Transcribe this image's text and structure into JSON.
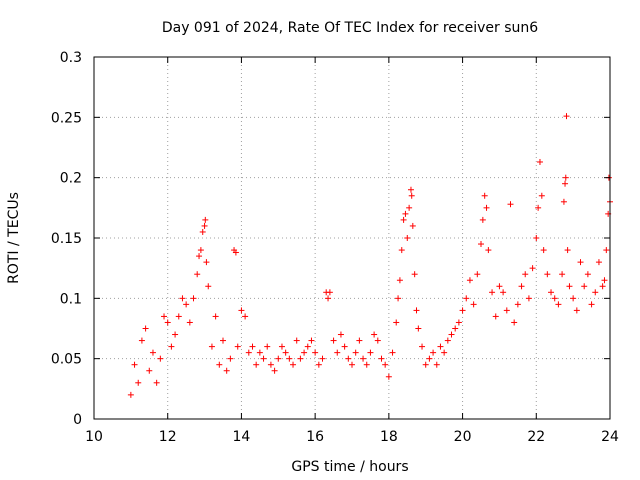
{
  "chart_data": {
    "type": "scatter",
    "title": "Day 091 of 2024, Rate Of TEC Index for receiver sun6",
    "xlabel": "GPS time / hours",
    "ylabel": "ROTI / TECUs",
    "xlim": [
      10,
      24
    ],
    "ylim": [
      0,
      0.3
    ],
    "grid": true,
    "marker": "+",
    "colors": {
      "points": "#ff0000",
      "grid": "#a0a0a0",
      "axes": "#000000"
    },
    "xticks": [
      10,
      12,
      14,
      16,
      18,
      20,
      22,
      24
    ],
    "yticks": [
      0,
      0.05,
      0.1,
      0.15,
      0.2,
      0.25,
      0.3
    ],
    "xtick_labels": [
      "10",
      "12",
      "14",
      "16",
      "18",
      "20",
      "22",
      "24"
    ],
    "ytick_labels": [
      "0",
      "0.05",
      "0.1",
      "0.15",
      "0.2",
      "0.25",
      "0.3"
    ],
    "series": [
      {
        "name": "ROTI",
        "points": [
          [
            11.0,
            0.02
          ],
          [
            11.1,
            0.045
          ],
          [
            11.2,
            0.03
          ],
          [
            11.3,
            0.065
          ],
          [
            11.4,
            0.075
          ],
          [
            11.5,
            0.04
          ],
          [
            11.6,
            0.055
          ],
          [
            11.7,
            0.03
          ],
          [
            11.8,
            0.05
          ],
          [
            11.9,
            0.085
          ],
          [
            12.0,
            0.08
          ],
          [
            12.1,
            0.06
          ],
          [
            12.2,
            0.07
          ],
          [
            12.3,
            0.085
          ],
          [
            12.4,
            0.1
          ],
          [
            12.5,
            0.095
          ],
          [
            12.6,
            0.08
          ],
          [
            12.7,
            0.1
          ],
          [
            12.8,
            0.12
          ],
          [
            12.85,
            0.135
          ],
          [
            12.9,
            0.14
          ],
          [
            12.95,
            0.155
          ],
          [
            13.0,
            0.16
          ],
          [
            13.02,
            0.165
          ],
          [
            13.05,
            0.13
          ],
          [
            13.1,
            0.11
          ],
          [
            13.2,
            0.06
          ],
          [
            13.3,
            0.085
          ],
          [
            13.4,
            0.045
          ],
          [
            13.5,
            0.065
          ],
          [
            13.6,
            0.04
          ],
          [
            13.7,
            0.05
          ],
          [
            13.8,
            0.14
          ],
          [
            13.85,
            0.138
          ],
          [
            13.9,
            0.06
          ],
          [
            14.0,
            0.09
          ],
          [
            14.1,
            0.085
          ],
          [
            14.2,
            0.055
          ],
          [
            14.3,
            0.06
          ],
          [
            14.4,
            0.045
          ],
          [
            14.5,
            0.055
          ],
          [
            14.6,
            0.05
          ],
          [
            14.7,
            0.06
          ],
          [
            14.8,
            0.045
          ],
          [
            14.9,
            0.04
          ],
          [
            15.0,
            0.05
          ],
          [
            15.1,
            0.06
          ],
          [
            15.2,
            0.055
          ],
          [
            15.3,
            0.05
          ],
          [
            15.4,
            0.045
          ],
          [
            15.5,
            0.065
          ],
          [
            15.6,
            0.05
          ],
          [
            15.7,
            0.055
          ],
          [
            15.8,
            0.06
          ],
          [
            15.9,
            0.065
          ],
          [
            16.0,
            0.055
          ],
          [
            16.1,
            0.045
          ],
          [
            16.2,
            0.05
          ],
          [
            16.3,
            0.105
          ],
          [
            16.35,
            0.1
          ],
          [
            16.4,
            0.105
          ],
          [
            16.5,
            0.065
          ],
          [
            16.6,
            0.055
          ],
          [
            16.7,
            0.07
          ],
          [
            16.8,
            0.06
          ],
          [
            16.9,
            0.05
          ],
          [
            17.0,
            0.045
          ],
          [
            17.1,
            0.055
          ],
          [
            17.2,
            0.065
          ],
          [
            17.3,
            0.05
          ],
          [
            17.4,
            0.045
          ],
          [
            17.5,
            0.055
          ],
          [
            17.6,
            0.07
          ],
          [
            17.7,
            0.065
          ],
          [
            17.8,
            0.05
          ],
          [
            17.9,
            0.045
          ],
          [
            18.0,
            0.035
          ],
          [
            18.1,
            0.055
          ],
          [
            18.2,
            0.08
          ],
          [
            18.25,
            0.1
          ],
          [
            18.3,
            0.115
          ],
          [
            18.35,
            0.14
          ],
          [
            18.4,
            0.165
          ],
          [
            18.45,
            0.17
          ],
          [
            18.5,
            0.15
          ],
          [
            18.55,
            0.175
          ],
          [
            18.6,
            0.19
          ],
          [
            18.62,
            0.185
          ],
          [
            18.65,
            0.16
          ],
          [
            18.7,
            0.12
          ],
          [
            18.75,
            0.09
          ],
          [
            18.8,
            0.075
          ],
          [
            18.9,
            0.06
          ],
          [
            19.0,
            0.045
          ],
          [
            19.1,
            0.05
          ],
          [
            19.2,
            0.055
          ],
          [
            19.3,
            0.045
          ],
          [
            19.4,
            0.06
          ],
          [
            19.5,
            0.055
          ],
          [
            19.6,
            0.065
          ],
          [
            19.7,
            0.07
          ],
          [
            19.8,
            0.075
          ],
          [
            19.9,
            0.08
          ],
          [
            20.0,
            0.09
          ],
          [
            20.1,
            0.1
          ],
          [
            20.2,
            0.115
          ],
          [
            20.3,
            0.095
          ],
          [
            20.4,
            0.12
          ],
          [
            20.5,
            0.145
          ],
          [
            20.55,
            0.165
          ],
          [
            20.6,
            0.185
          ],
          [
            20.65,
            0.175
          ],
          [
            20.7,
            0.14
          ],
          [
            20.8,
            0.105
          ],
          [
            20.9,
            0.085
          ],
          [
            21.0,
            0.11
          ],
          [
            21.1,
            0.105
          ],
          [
            21.2,
            0.09
          ],
          [
            21.3,
            0.178
          ],
          [
            21.4,
            0.08
          ],
          [
            21.5,
            0.095
          ],
          [
            21.6,
            0.11
          ],
          [
            21.7,
            0.12
          ],
          [
            21.8,
            0.1
          ],
          [
            21.9,
            0.125
          ],
          [
            22.0,
            0.15
          ],
          [
            22.05,
            0.175
          ],
          [
            22.1,
            0.213
          ],
          [
            22.15,
            0.185
          ],
          [
            22.2,
            0.14
          ],
          [
            22.3,
            0.12
          ],
          [
            22.4,
            0.105
          ],
          [
            22.5,
            0.1
          ],
          [
            22.6,
            0.095
          ],
          [
            22.7,
            0.12
          ],
          [
            22.75,
            0.18
          ],
          [
            22.78,
            0.195
          ],
          [
            22.8,
            0.2
          ],
          [
            22.82,
            0.251
          ],
          [
            22.85,
            0.14
          ],
          [
            22.9,
            0.11
          ],
          [
            23.0,
            0.1
          ],
          [
            23.1,
            0.09
          ],
          [
            23.2,
            0.13
          ],
          [
            23.3,
            0.11
          ],
          [
            23.4,
            0.12
          ],
          [
            23.5,
            0.095
          ],
          [
            23.6,
            0.105
          ],
          [
            23.7,
            0.13
          ],
          [
            23.8,
            0.11
          ],
          [
            23.85,
            0.115
          ],
          [
            23.9,
            0.14
          ],
          [
            23.95,
            0.17
          ],
          [
            23.97,
            0.2
          ],
          [
            24.0,
            0.18
          ]
        ]
      }
    ]
  }
}
